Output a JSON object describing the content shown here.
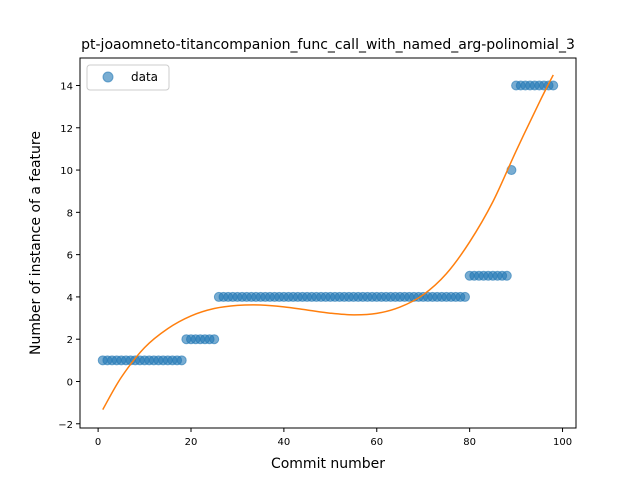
{
  "chart_data": {
    "type": "scatter",
    "title": "pt-joaomneto-titancompanion_func_call_with_named_arg-polinomial_3",
    "xlabel": "Commit number",
    "ylabel": "Number of instance of a feature",
    "xlim": [
      -3.9,
      102.9
    ],
    "ylim": [
      -2.2,
      15.3
    ],
    "xticks": [
      0,
      20,
      40,
      60,
      80,
      100
    ],
    "yticks": [
      -2,
      0,
      2,
      4,
      6,
      8,
      10,
      12,
      14
    ],
    "grid": false,
    "legend": {
      "placement": "top-left",
      "entries": [
        "data"
      ]
    },
    "colors": {
      "data": "#1f77b4",
      "fit": "#ff7f0e"
    },
    "series": [
      {
        "name": "data",
        "kind": "points",
        "x": [
          1,
          2,
          3,
          4,
          5,
          6,
          7,
          8,
          9,
          10,
          11,
          12,
          13,
          14,
          15,
          16,
          17,
          18,
          19,
          20,
          21,
          22,
          23,
          24,
          25,
          26,
          27,
          28,
          29,
          30,
          31,
          32,
          33,
          34,
          35,
          36,
          37,
          38,
          39,
          40,
          41,
          42,
          43,
          44,
          45,
          46,
          47,
          48,
          49,
          50,
          51,
          52,
          53,
          54,
          55,
          56,
          57,
          58,
          59,
          60,
          61,
          62,
          63,
          64,
          65,
          66,
          67,
          68,
          69,
          70,
          71,
          72,
          73,
          74,
          75,
          76,
          77,
          78,
          79,
          80,
          81,
          82,
          83,
          84,
          85,
          86,
          87,
          88,
          89,
          90,
          91,
          92,
          93,
          94,
          95,
          96,
          97,
          98
        ],
        "y": [
          1,
          1,
          1,
          1,
          1,
          1,
          1,
          1,
          1,
          1,
          1,
          1,
          1,
          1,
          1,
          1,
          1,
          1,
          2,
          2,
          2,
          2,
          2,
          2,
          2,
          4,
          4,
          4,
          4,
          4,
          4,
          4,
          4,
          4,
          4,
          4,
          4,
          4,
          4,
          4,
          4,
          4,
          4,
          4,
          4,
          4,
          4,
          4,
          4,
          4,
          4,
          4,
          4,
          4,
          4,
          4,
          4,
          4,
          4,
          4,
          4,
          4,
          4,
          4,
          4,
          4,
          4,
          4,
          4,
          4,
          4,
          4,
          4,
          4,
          4,
          4,
          4,
          4,
          4,
          5,
          5,
          5,
          5,
          5,
          5,
          5,
          5,
          5,
          10,
          14,
          14,
          14,
          14,
          14,
          14,
          14,
          14,
          14
        ]
      },
      {
        "kind": "fit-curve",
        "x": [
          1,
          5,
          10,
          15,
          20,
          25,
          30,
          35,
          40,
          45,
          50,
          55,
          60,
          65,
          70,
          75,
          80,
          85,
          90,
          95,
          98
        ],
        "y": [
          -1.33,
          0.2,
          1.6,
          2.5,
          3.1,
          3.45,
          3.6,
          3.62,
          3.53,
          3.38,
          3.23,
          3.15,
          3.22,
          3.52,
          4.1,
          5.1,
          6.6,
          8.5,
          10.9,
          13.2,
          14.5
        ]
      }
    ]
  }
}
